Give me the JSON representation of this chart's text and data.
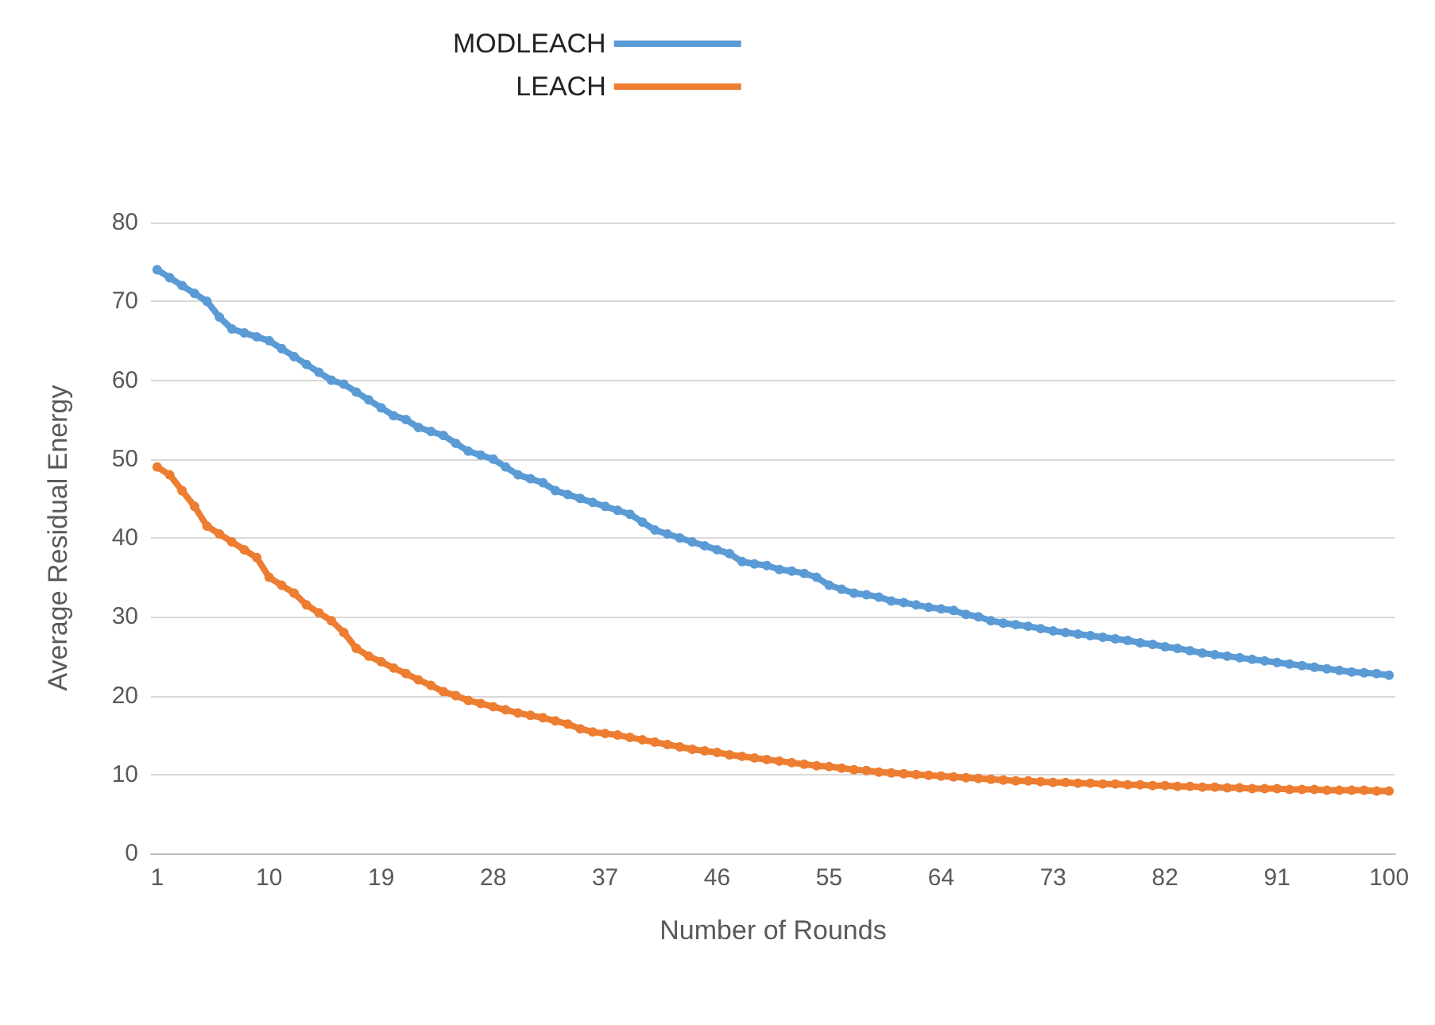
{
  "chart_data": {
    "type": "line",
    "xlabel": "Number of Rounds",
    "ylabel": "Average Residual Energy",
    "categories": [
      "1",
      null,
      null,
      null,
      null,
      null,
      null,
      null,
      null,
      "10",
      null,
      null,
      null,
      null,
      null,
      null,
      null,
      null,
      "19",
      null,
      null,
      null,
      null,
      null,
      null,
      null,
      null,
      "28",
      null,
      null,
      null,
      null,
      null,
      null,
      null,
      null,
      "37",
      null,
      null,
      null,
      null,
      null,
      null,
      null,
      null,
      "46",
      null,
      null,
      null,
      null,
      null,
      null,
      null,
      null,
      "55",
      null,
      null,
      null,
      null,
      null,
      null,
      null,
      null,
      "64",
      null,
      null,
      null,
      null,
      null,
      null,
      null,
      null,
      "73",
      null,
      null,
      null,
      null,
      null,
      null,
      null,
      null,
      "82",
      null,
      null,
      null,
      null,
      null,
      null,
      null,
      null,
      "91",
      null,
      null,
      null,
      null,
      null,
      null,
      null,
      null,
      "100"
    ],
    "series": [
      {
        "name": "MODLEACH",
        "color": "#5b9bd5",
        "values": [
          74,
          73,
          72,
          71,
          70,
          68,
          66.5,
          66,
          65.5,
          65,
          64,
          63,
          62,
          61,
          60,
          59.5,
          58.5,
          57.5,
          56.5,
          55.5,
          55,
          54,
          53.5,
          53,
          52,
          51,
          50.5,
          50,
          49,
          48,
          47.5,
          47,
          46,
          45.5,
          45,
          44.5,
          44,
          43.5,
          43,
          42,
          41,
          40.5,
          40,
          39.5,
          39,
          38.5,
          38,
          37,
          36.7,
          36.5,
          36,
          35.8,
          35.5,
          35,
          34,
          33.5,
          33,
          32.8,
          32.5,
          32,
          31.8,
          31.5,
          31.2,
          31,
          30.8,
          30.3,
          30,
          29.5,
          29.2,
          29,
          28.8,
          28.5,
          28.2,
          28,
          27.8,
          27.6,
          27.4,
          27.2,
          27,
          26.7,
          26.5,
          26.2,
          26,
          25.7,
          25.4,
          25.2,
          25,
          24.8,
          24.6,
          24.4,
          24.2,
          24,
          23.8,
          23.6,
          23.4,
          23.2,
          23,
          22.9,
          22.8,
          22.6
        ]
      },
      {
        "name": "LEACH",
        "color": "#ed7d31",
        "values": [
          49,
          48,
          46,
          44,
          41.5,
          40.5,
          39.5,
          38.5,
          37.5,
          35,
          34,
          33,
          31.5,
          30.5,
          29.5,
          28,
          26,
          25,
          24.3,
          23.5,
          22.8,
          22,
          21.3,
          20.5,
          20,
          19.4,
          19,
          18.6,
          18.2,
          17.8,
          17.5,
          17.2,
          16.8,
          16.4,
          15.8,
          15.4,
          15.2,
          15,
          14.7,
          14.4,
          14.1,
          13.8,
          13.5,
          13.2,
          13,
          12.8,
          12.5,
          12.3,
          12.1,
          11.9,
          11.7,
          11.5,
          11.3,
          11.1,
          11,
          10.8,
          10.6,
          10.5,
          10.3,
          10.2,
          10.1,
          10,
          9.9,
          9.8,
          9.7,
          9.6,
          9.5,
          9.4,
          9.3,
          9.2,
          9.2,
          9.1,
          9,
          9,
          8.9,
          8.9,
          8.8,
          8.8,
          8.7,
          8.7,
          8.6,
          8.6,
          8.5,
          8.5,
          8.4,
          8.4,
          8.3,
          8.3,
          8.2,
          8.2,
          8.2,
          8.1,
          8.1,
          8.1,
          8,
          8,
          8,
          8,
          7.9,
          7.9
        ]
      }
    ],
    "ylim": [
      0,
      80
    ],
    "yticks": [
      0,
      10,
      20,
      30,
      40,
      50,
      60,
      70,
      80
    ],
    "grid": "y",
    "legend": "top",
    "marker": "circle",
    "line_style": "solid"
  }
}
